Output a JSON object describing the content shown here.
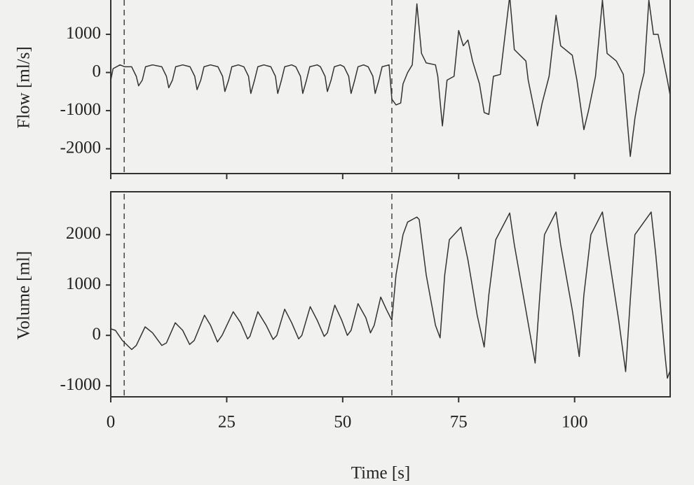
{
  "chart_data": [
    {
      "type": "line",
      "y_label": "Flow [ml/s]",
      "xlim": [
        0,
        120.6
      ],
      "ylim": [
        -2650,
        1900
      ],
      "xticks": [
        0,
        25,
        50,
        75,
        100
      ],
      "yticks": [
        -2000,
        -1000,
        0,
        1000
      ],
      "vlines": [
        2.9,
        60.6
      ],
      "series": [
        {
          "color": "#333333",
          "x": [
            0,
            0.5,
            2,
            3,
            4.5,
            5.5,
            6,
            6.8,
            7.5,
            9,
            11,
            12,
            12.5,
            13.3,
            14,
            15.5,
            17.1,
            18.1,
            18.6,
            19.4,
            20.1,
            21.5,
            23.1,
            24.1,
            24.6,
            25.4,
            26.1,
            27.5,
            28.7,
            29.7,
            30.2,
            31,
            31.7,
            33,
            34.5,
            35.5,
            36,
            36.8,
            37.5,
            39,
            39.9,
            40.9,
            41.4,
            42.2,
            42.9,
            44.5,
            45.2,
            46.2,
            46.7,
            47.5,
            48.2,
            49.5,
            50.3,
            51.3,
            51.8,
            52.6,
            53.3,
            54.5,
            55.5,
            56.5,
            57,
            57.8,
            58.5,
            60,
            60.6,
            61.5,
            62.5,
            63,
            64,
            65,
            66,
            67,
            68,
            70,
            70.5,
            71.5,
            72.5,
            74,
            75,
            76,
            77,
            78,
            79.5,
            80.5,
            81.5,
            82.5,
            84,
            86,
            87,
            89.5,
            90,
            92,
            93,
            94.5,
            96,
            97,
            99.5,
            100.5,
            102,
            103,
            104.5,
            106,
            107,
            109,
            110.5,
            112,
            113,
            114,
            115,
            116,
            117,
            118,
            119,
            120,
            120.6
          ],
          "values": [
            -200,
            100,
            200,
            150,
            150,
            -100,
            -350,
            -200,
            150,
            200,
            150,
            -100,
            -400,
            -200,
            150,
            200,
            150,
            -100,
            -450,
            -200,
            150,
            200,
            150,
            -100,
            -500,
            -200,
            150,
            200,
            150,
            -100,
            -550,
            -200,
            150,
            200,
            150,
            -100,
            -550,
            -200,
            150,
            200,
            150,
            -100,
            -550,
            -200,
            150,
            200,
            150,
            -100,
            -500,
            -200,
            150,
            200,
            150,
            -100,
            -550,
            -200,
            150,
            200,
            150,
            -100,
            -550,
            -200,
            150,
            200,
            -700,
            -850,
            -800,
            -300,
            0,
            200,
            1800,
            500,
            250,
            200,
            -100,
            -1400,
            -200,
            -100,
            1100,
            700,
            850,
            300,
            -300,
            -1050,
            -1100,
            -100,
            -50,
            2000,
            600,
            300,
            -200,
            -1400,
            -800,
            -100,
            1500,
            700,
            450,
            -200,
            -1500,
            -1000,
            -100,
            1900,
            500,
            300,
            -50,
            -2200,
            -1200,
            -500,
            0,
            1900,
            1000,
            1000,
            400,
            -200,
            -600
          ]
        }
      ]
    },
    {
      "type": "line",
      "y_label": "Volume [ml]",
      "x_label": "Time [s]",
      "xlim": [
        0,
        120.6
      ],
      "ylim": [
        -1220,
        2810
      ],
      "xticks": [
        0,
        25,
        50,
        75,
        100
      ],
      "yticks": [
        -1000,
        0,
        1000,
        2000
      ],
      "vlines": [
        2.9,
        60.6
      ],
      "series": [
        {
          "color": "#333333",
          "x": [
            0,
            1,
            2.5,
            4.5,
            5.5,
            7.4,
            9,
            11,
            12,
            13.9,
            15.5,
            17,
            18,
            20.2,
            21.5,
            23,
            24,
            26.4,
            28,
            29.5,
            30,
            31.7,
            33.5,
            35,
            35.8,
            37.5,
            39,
            40.5,
            41.2,
            43,
            44.5,
            46,
            46.7,
            48.3,
            49.8,
            51,
            51.8,
            53.3,
            55,
            56,
            56.8,
            58.2,
            59.5,
            60.6,
            61.5,
            63,
            64,
            66,
            66.5,
            68,
            70,
            71,
            72,
            73,
            75.5,
            77,
            79,
            80.5,
            81.5,
            83,
            86,
            87,
            89.5,
            91.5,
            92.5,
            93.5,
            96,
            97,
            99.5,
            101,
            102,
            103.5,
            106,
            107,
            109.5,
            111,
            112,
            113,
            116.5,
            117.5,
            119.5,
            120,
            120.6
          ],
          "values": [
            130,
            100,
            -100,
            -280,
            -200,
            170,
            50,
            -200,
            -150,
            250,
            100,
            -180,
            -100,
            400,
            200,
            -130,
            0,
            470,
            250,
            -70,
            -20,
            470,
            200,
            -80,
            0,
            520,
            250,
            -70,
            0,
            570,
            300,
            -20,
            50,
            600,
            300,
            0,
            100,
            630,
            350,
            50,
            200,
            760,
            500,
            300,
            1200,
            2000,
            2250,
            2350,
            2300,
            1200,
            200,
            -50,
            1200,
            1900,
            2150,
            1500,
            400,
            -230,
            800,
            1900,
            2430,
            1800,
            500,
            -550,
            800,
            2000,
            2450,
            1800,
            500,
            -420,
            800,
            2000,
            2450,
            1800,
            300,
            -720,
            700,
            2000,
            2450,
            1600,
            -400,
            -850,
            -700
          ]
        }
      ]
    }
  ]
}
